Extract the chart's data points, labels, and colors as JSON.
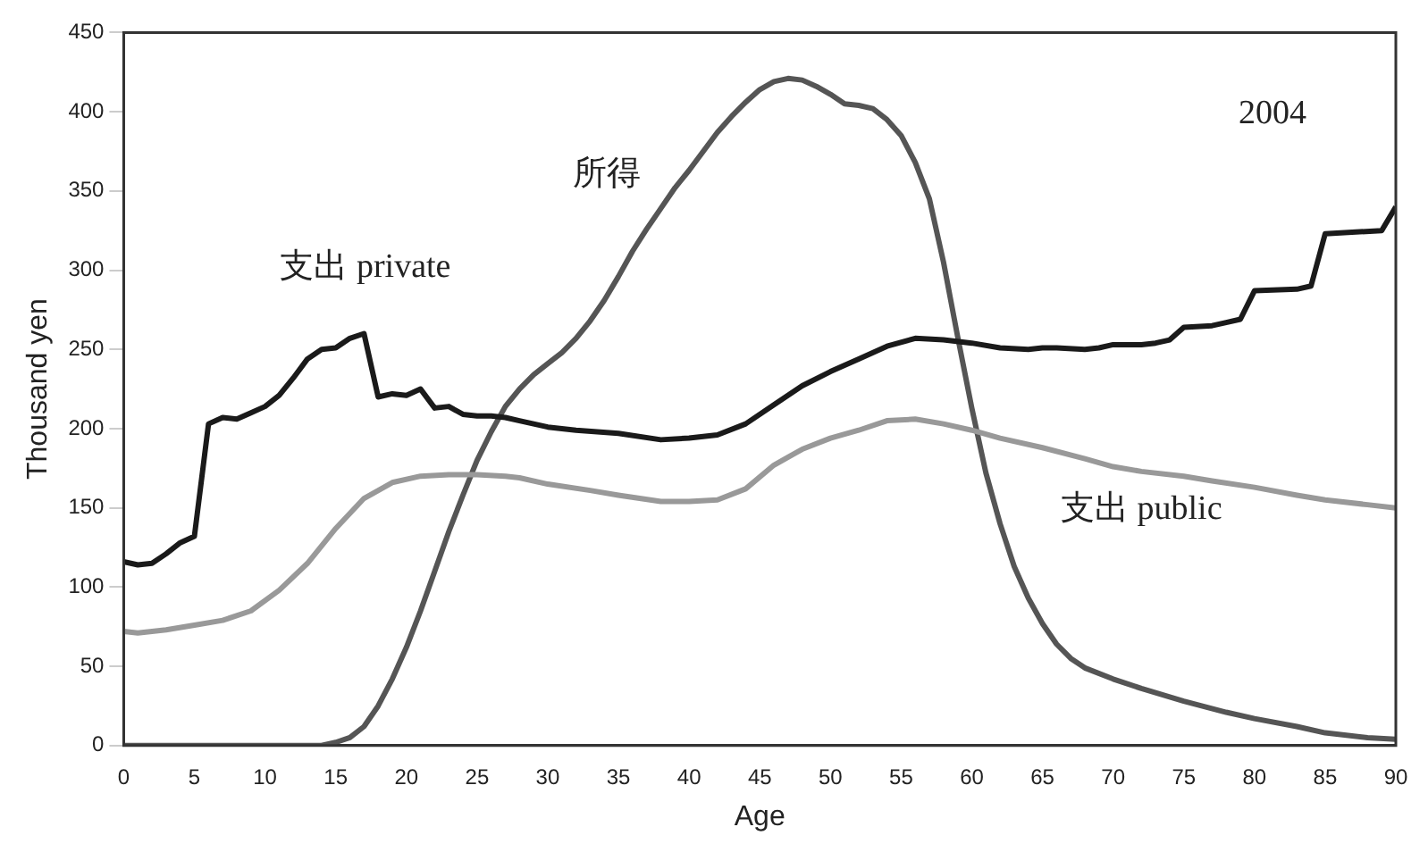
{
  "chart_data": {
    "type": "line",
    "xlabel": "Age",
    "ylabel": "Thousand yen",
    "xlim": [
      0,
      90
    ],
    "xticks": [
      0,
      5,
      10,
      15,
      20,
      25,
      30,
      35,
      40,
      45,
      50,
      55,
      60,
      65,
      70,
      75,
      80,
      85,
      90
    ],
    "ylim": [
      0,
      450
    ],
    "yticks": [
      0,
      50,
      100,
      150,
      200,
      250,
      300,
      350,
      400,
      450
    ],
    "grid": false,
    "legend": false,
    "marker": "none",
    "line_style": "solid",
    "series": [
      {
        "name": "支出 private",
        "color": "#1a1a1a",
        "x": [
          0,
          1,
          2,
          3,
          4,
          5,
          6,
          7,
          8,
          9,
          10,
          11,
          12,
          13,
          14,
          15,
          16,
          17,
          18,
          19,
          20,
          21,
          22,
          23,
          24,
          25,
          26,
          27,
          28,
          29,
          30,
          32,
          35,
          38,
          40,
          42,
          44,
          46,
          48,
          50,
          52,
          54,
          56,
          58,
          60,
          62,
          64,
          65,
          66,
          68,
          69,
          70,
          72,
          73,
          74,
          75,
          77,
          78,
          79,
          80,
          83,
          84,
          85,
          89,
          90
        ],
        "values": [
          116,
          114,
          115,
          121,
          128,
          132,
          203,
          207,
          206,
          210,
          214,
          221,
          232,
          244,
          250,
          251,
          257,
          260,
          220,
          222,
          221,
          225,
          213,
          214,
          209,
          208,
          208,
          207,
          205,
          203,
          201,
          199,
          197,
          193,
          194,
          196,
          203,
          215,
          227,
          236,
          244,
          252,
          257,
          256,
          254,
          251,
          250,
          251,
          251,
          250,
          251,
          253,
          253,
          254,
          256,
          264,
          265,
          267,
          269,
          287,
          288,
          290,
          323,
          325,
          340
        ]
      },
      {
        "name": "支出 public",
        "color": "#999999",
        "x": [
          0,
          1,
          3,
          5,
          7,
          9,
          11,
          13,
          15,
          17,
          19,
          21,
          23,
          25,
          27,
          28,
          30,
          33,
          35,
          38,
          40,
          42,
          44,
          46,
          48,
          50,
          52,
          54,
          56,
          58,
          60,
          62,
          65,
          68,
          70,
          72,
          75,
          77,
          80,
          83,
          85,
          88,
          90
        ],
        "values": [
          72,
          71,
          73,
          76,
          79,
          85,
          98,
          115,
          137,
          156,
          166,
          170,
          171,
          171,
          170,
          169,
          165,
          161,
          158,
          154,
          154,
          155,
          162,
          177,
          187,
          194,
          199,
          205,
          206,
          203,
          199,
          194,
          188,
          181,
          176,
          173,
          170,
          167,
          163,
          158,
          155,
          152,
          150
        ]
      },
      {
        "name": "所得",
        "color": "#555555",
        "x": [
          0,
          5,
          10,
          14,
          15,
          16,
          17,
          18,
          19,
          20,
          21,
          22,
          23,
          24,
          25,
          26,
          27,
          28,
          29,
          30,
          31,
          32,
          33,
          34,
          35,
          36,
          37,
          38,
          39,
          40,
          41,
          42,
          43,
          44,
          45,
          46,
          47,
          48,
          49,
          50,
          51,
          52,
          53,
          54,
          55,
          56,
          57,
          58,
          59,
          60,
          61,
          62,
          63,
          64,
          65,
          66,
          67,
          68,
          70,
          72,
          75,
          78,
          80,
          83,
          85,
          88,
          90
        ],
        "values": [
          0,
          0,
          0,
          0,
          2,
          5,
          12,
          25,
          42,
          62,
          85,
          110,
          135,
          158,
          180,
          198,
          214,
          225,
          234,
          241,
          248,
          257,
          268,
          281,
          296,
          312,
          326,
          339,
          352,
          363,
          375,
          387,
          397,
          406,
          414,
          419,
          421,
          420,
          416,
          411,
          405,
          404,
          402,
          395,
          385,
          368,
          345,
          305,
          258,
          213,
          172,
          140,
          113,
          93,
          77,
          64,
          55,
          49,
          42,
          36,
          28,
          21,
          17,
          12,
          8,
          5,
          4
        ]
      }
    ],
    "annotations": [
      "2004"
    ]
  }
}
